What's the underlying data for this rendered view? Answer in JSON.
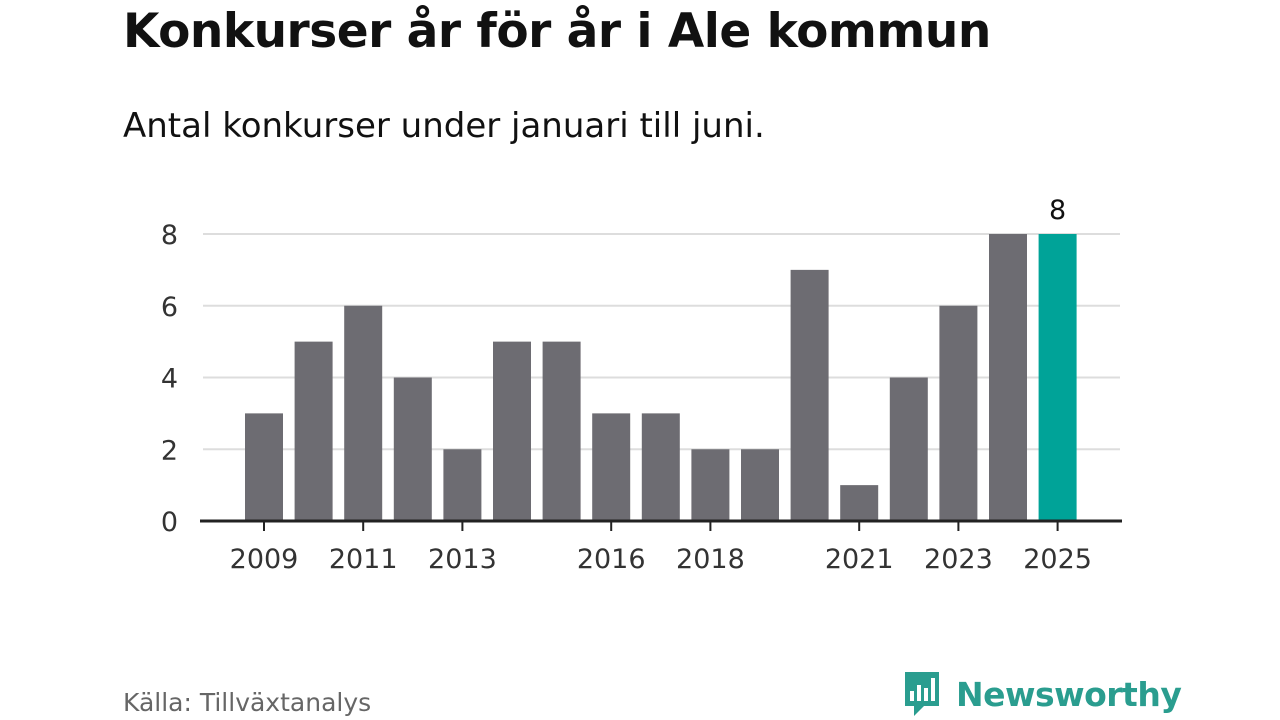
{
  "header": {
    "title": "Konkurser år för år i Ale kommun",
    "subtitle": "Antal konkurser under januari till juni."
  },
  "footer": {
    "source": "Källa: Tillväxtanalys",
    "brand": "Newsworthy"
  },
  "colors": {
    "bar": "#6d6c72",
    "highlight": "#00a398",
    "grid": "#dddddd",
    "axis": "#222222",
    "brand": "#2a9d8f"
  },
  "chart_data": {
    "type": "bar",
    "categories": [
      "2009",
      "2010",
      "2011",
      "2012",
      "2013",
      "2014",
      "2015",
      "2016",
      "2017",
      "2018",
      "2019",
      "2020",
      "2021",
      "2022",
      "2023",
      "2024",
      "2025"
    ],
    "values": [
      3,
      5,
      6,
      4,
      2,
      5,
      5,
      3,
      3,
      2,
      2,
      7,
      1,
      4,
      6,
      8,
      8
    ],
    "x_tick_labels": [
      "2009",
      "2011",
      "2013",
      "2016",
      "2018",
      "2021",
      "2023",
      "2025"
    ],
    "y_ticks": [
      0,
      2,
      4,
      6,
      8
    ],
    "ylim": [
      0,
      8
    ],
    "highlight_category": "2025",
    "data_labels": [
      {
        "category": "2025",
        "label": "8"
      }
    ],
    "grid": true,
    "legend": "none",
    "xlabel": "",
    "ylabel": ""
  }
}
